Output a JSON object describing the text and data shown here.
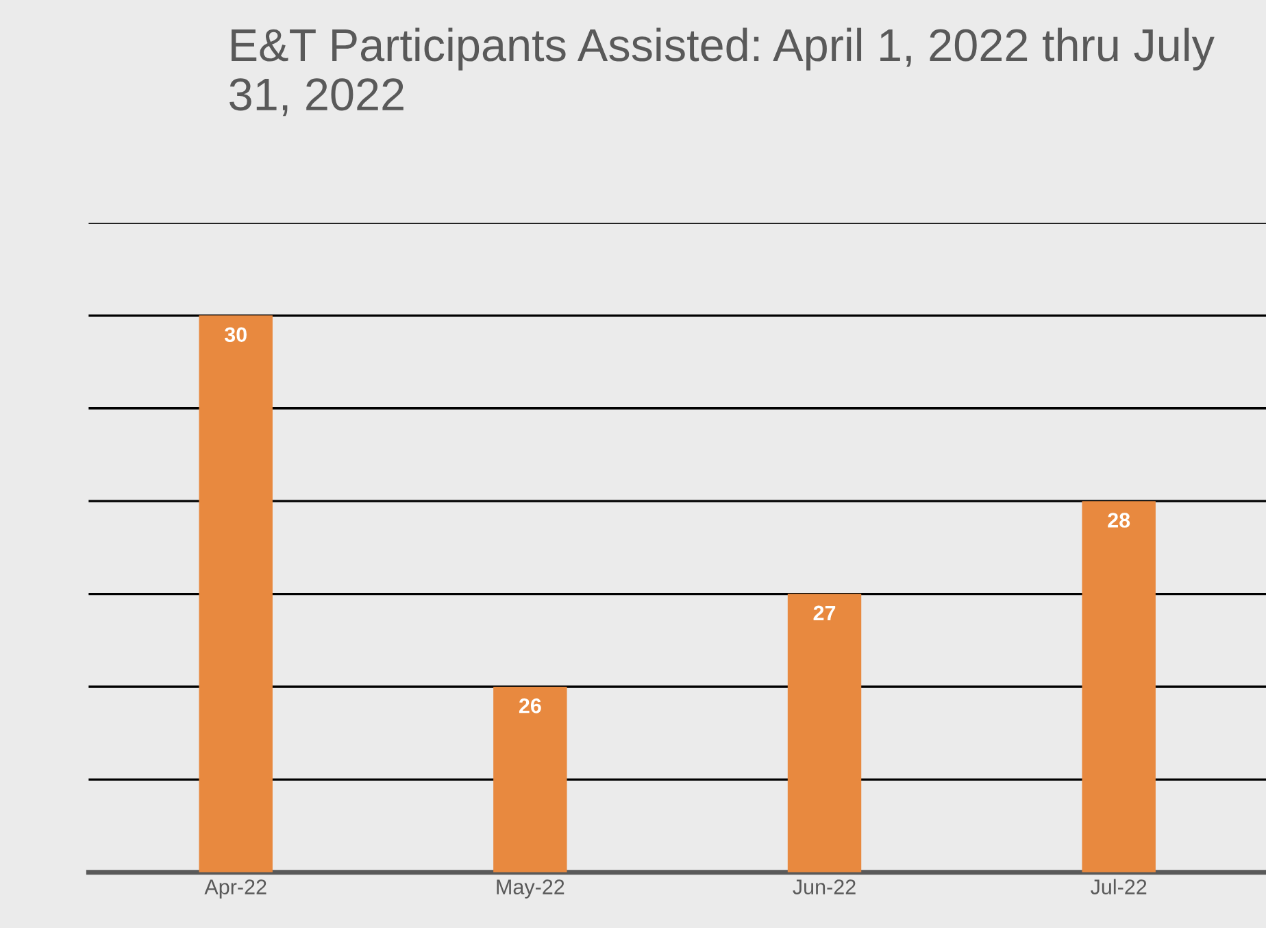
{
  "chart_data": {
    "type": "bar",
    "title": "E&T Participants Assisted: April 1, 2022 thru July 31, 2022",
    "categories": [
      "Apr-22",
      "May-22",
      "Jun-22",
      "Jul-22"
    ],
    "values": [
      30,
      26,
      27,
      28
    ],
    "color": "#e8893f",
    "data_labels": true,
    "ylim": [
      24,
      31
    ],
    "yticks": [
      {
        "value": 24,
        "label": null
      },
      {
        "value": 25,
        "label": null
      },
      {
        "value": 26,
        "label": null
      },
      {
        "value": 27,
        "label": null
      },
      {
        "value": 28,
        "label": null
      },
      {
        "value": 29,
        "label": null
      },
      {
        "value": 30,
        "label": null
      },
      {
        "value": 31,
        "label": null
      }
    ],
    "grid": "y",
    "legend": false
  }
}
